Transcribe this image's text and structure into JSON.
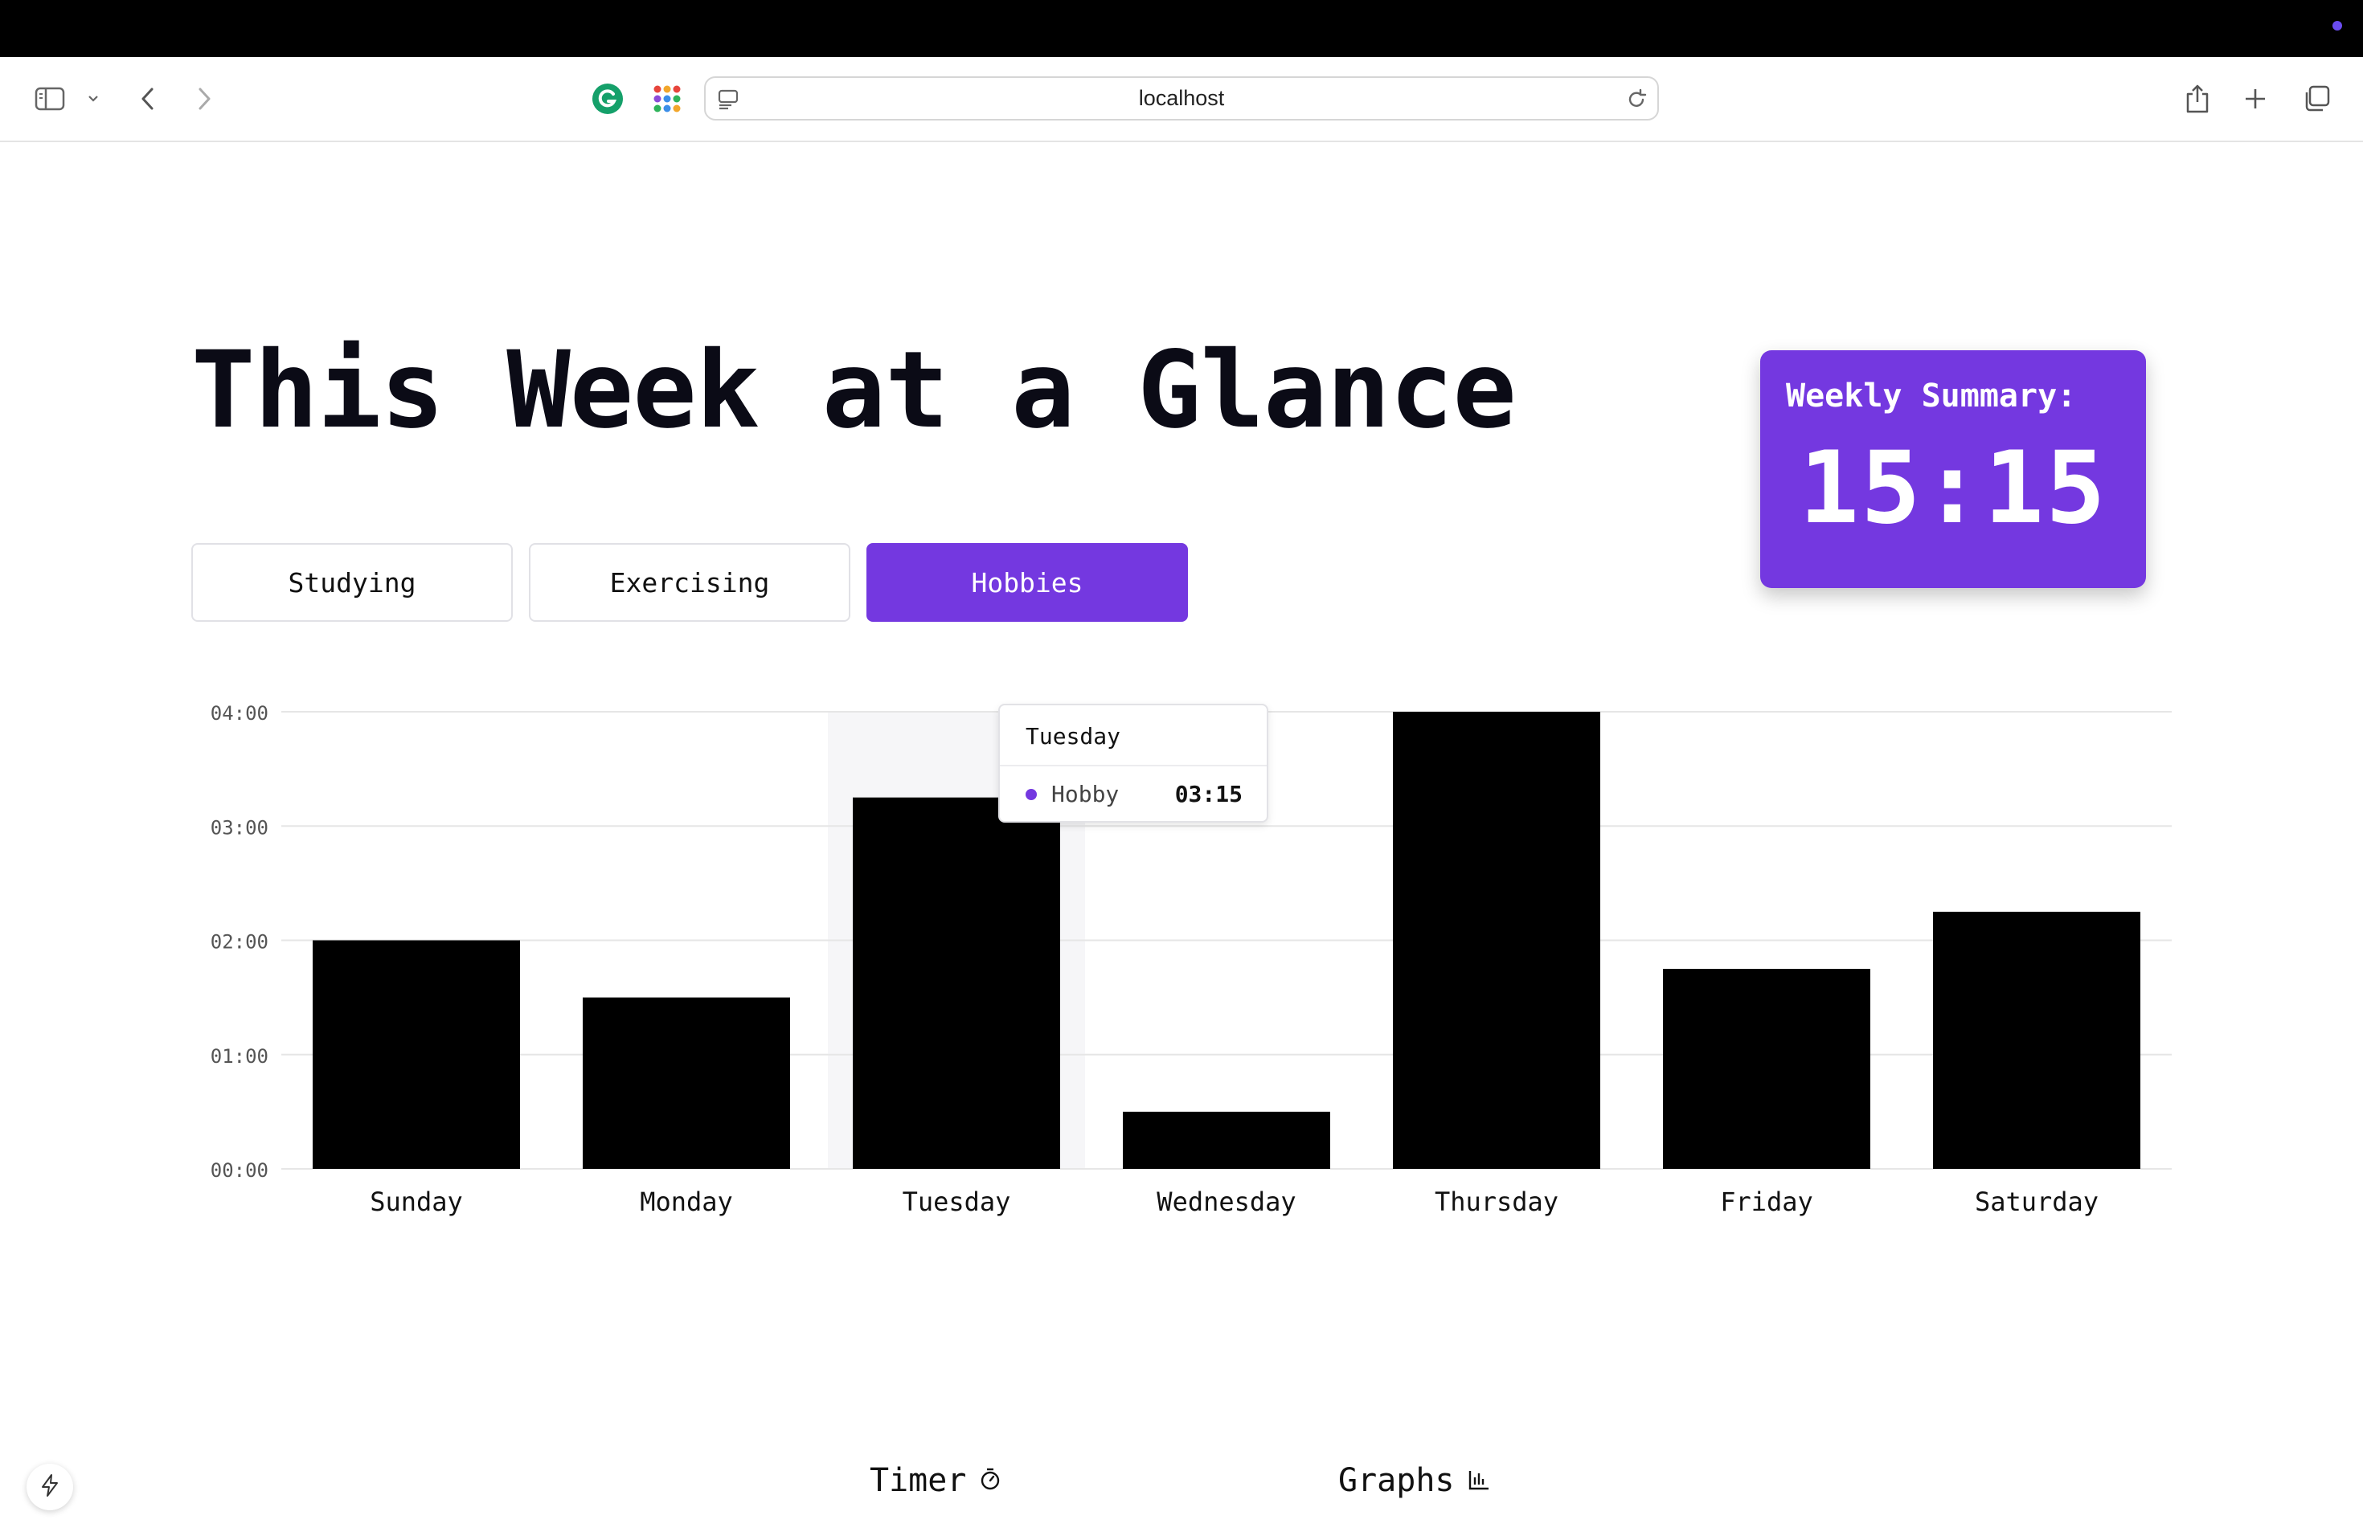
{
  "browser": {
    "url": "localhost",
    "accent_dot_color": "#6a4cf0",
    "icons": [
      "sidebar-icon",
      "chevron-down-icon",
      "back-icon",
      "forward-icon",
      "grammarly-icon",
      "apps-grid-icon",
      "page-icon",
      "reload-icon",
      "share-icon",
      "new-tab-icon",
      "tabs-overview-icon"
    ]
  },
  "page": {
    "title": "This Week at a Glance",
    "tabs": [
      {
        "label": "Studying",
        "active": false
      },
      {
        "label": "Exercising",
        "active": false
      },
      {
        "label": "Hobbies",
        "active": true
      }
    ],
    "summary": {
      "label": "Weekly Summary:",
      "value": "15:15"
    },
    "accent_color": "#7438e0"
  },
  "chart_data": {
    "type": "bar",
    "categories": [
      "Sunday",
      "Monday",
      "Tuesday",
      "Wednesday",
      "Thursday",
      "Friday",
      "Saturday"
    ],
    "values": [
      2.0,
      1.5,
      3.25,
      0.5,
      4.0,
      1.75,
      2.25
    ],
    "y_unit": "hours",
    "y_ticks": [
      "00:00",
      "01:00",
      "02:00",
      "03:00",
      "04:00"
    ],
    "ylim": [
      0,
      4
    ],
    "bar_color": "#000000",
    "highlighted_category": "Tuesday",
    "grid": true,
    "tooltip": {
      "title": "Tuesday",
      "series": "Hobby",
      "value": "03:15",
      "dot_color": "#7438e0"
    }
  },
  "footer_nav": [
    {
      "label": "Timer",
      "icon": "timer-icon"
    },
    {
      "label": "Graphs",
      "icon": "bar-chart-icon"
    }
  ],
  "floating_button": {
    "icon": "lightning-bolt-icon"
  }
}
